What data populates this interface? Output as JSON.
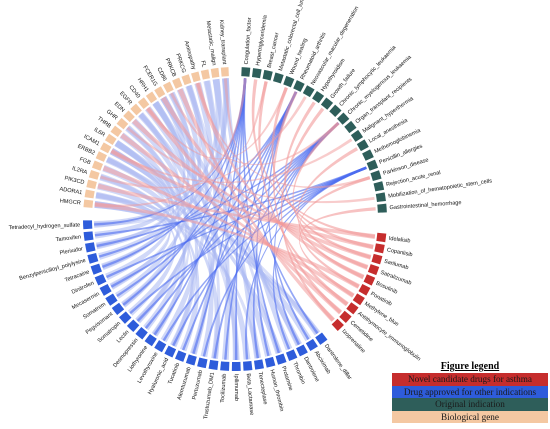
{
  "colors": {
    "novel_candidate": "#c62d2d",
    "approved_other": "#2e5cdb",
    "original_indication": "#2e5e5a",
    "biological_gene": "#f4c8a2",
    "ribbon_gene": "#aab8f2",
    "ribbon_indication": "#4d6df0",
    "ribbon_novel": "#f29a9a"
  },
  "legend": {
    "title": "Figure legend",
    "items": [
      {
        "label": "Novel candidate drugs for asthma",
        "color": "#c62d2d",
        "text_color": "#1a1a1a"
      },
      {
        "label": "Drug approved for other indications",
        "color": "#2e5cdb",
        "text_color": "#1a1a1a"
      },
      {
        "label": "Original indication",
        "color": "#2e5e5a",
        "text_color": "#1a1a1a"
      },
      {
        "label": "Biological gene",
        "color": "#f4c8a2",
        "text_color": "#1a1a1a"
      }
    ]
  },
  "genes": [
    "HMGCR",
    "ADORA1",
    "PIK3CD",
    "IL2RA",
    "FGB",
    "ERBB2",
    "ICAM1",
    "IL6R",
    "THRB",
    "GHR",
    "EDN",
    "EGFR",
    "CD40",
    "HRH1",
    "FCER1G",
    "CD86",
    "PRKCB",
    "PRKCG",
    "Aminopathy",
    "FL",
    "Metastatic_malign",
    "Kidney_transplant"
  ],
  "indications": [
    "Coagulation_factor",
    "Hypertriglyceridemia",
    "Breast_cancer",
    "Metastatic_colorectal_cell_lung_cancer",
    "Wound_healing",
    "Rheumatoid_arthritis",
    "Neovascular_macular_degeneration",
    "Hypothyroidism",
    "Growth_failure",
    "Chronic_lymphocytic_leukaemia",
    "Chronic_myelogenous_leukaemia",
    "Organ_transplant_recipients",
    "Malignant_hyperthermia",
    "Local_anesthesia",
    "Methemoglobinemia",
    "Penicillin_allergies",
    "Parkinson_disease",
    "Rejection_acute_renal",
    "Mobilization_of_hematopoietic_stem_cells",
    "Gastrointestinal_hemorrhage"
  ],
  "novel_drugs": [
    "Idelalisib",
    "Copanlisib",
    "Sarilumab",
    "Satralizumab",
    "Bosutinib",
    "Ponatinib",
    "Methylene_blue",
    "Antithymocyte_immunoglobulin",
    "Cemetidine",
    "Izoprenaline"
  ],
  "approved_drugs": [
    "Dantrolene_dillar",
    "Abciximab",
    "Dantrolene",
    "Thrombin",
    "Protamine",
    "Human_thrombin",
    "Tenecteplase",
    "Beta_Lactamase",
    "Ipilimumab",
    "Tocilizumab",
    "Trastuzumab_DM1",
    "Pertuzumab",
    "Alemtuzumab",
    "Tucatinib",
    "Hyaluronic_acid",
    "Levothyroxine",
    "Liothyronine",
    "Desmopressin",
    "Lectin",
    "Somatropin",
    "Pegvisomant",
    "Somatrem",
    "Mecasermin",
    "Dinitrofen",
    "Tetracaine",
    "Benzylpenicilloyl_polylysine",
    "Plerixafor",
    "Tamoxifen",
    "Tetradecyl_hydrogen_sulfate"
  ]
}
